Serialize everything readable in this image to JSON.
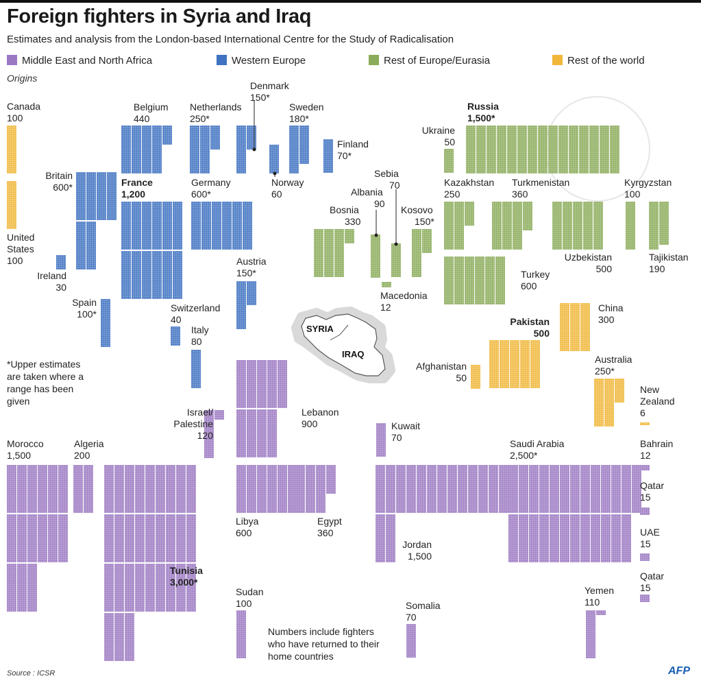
{
  "title": "Foreign fighters in Syria and Iraq",
  "subtitle": "Estimates and analysis from the London-based International Centre  for the Study of Radicalisation",
  "legend": [
    {
      "label": "Middle East and North Africa",
      "color": "#9b79c2"
    },
    {
      "label": "Western Europe",
      "color": "#3f72c1"
    },
    {
      "label": "Rest of Europe/Eurasia",
      "color": "#8aab5a"
    },
    {
      "label": "Rest of the world",
      "color": "#f0b73a"
    }
  ],
  "origins_label": "Origins",
  "footnote": "*Upper estimates are taken where a range has been given",
  "note": "Numbers include fighters who have returned to their home countries",
  "source": "Source : ICSR",
  "agency": "AFP",
  "map_labels": {
    "syria": "SYRIA",
    "iraq": "IRAQ"
  },
  "chart_data": {
    "type": "unit-chart",
    "unit": "fighters",
    "countries": [
      {
        "name": "Canada",
        "value_label": "100",
        "value": 100,
        "region": "Rest of the world"
      },
      {
        "name": "United States",
        "value_label": "100",
        "value": 100,
        "region": "Rest of the world"
      },
      {
        "name": "Belgium",
        "value_label": "440",
        "value": 440,
        "region": "Western Europe"
      },
      {
        "name": "Netherlands",
        "value_label": "250*",
        "value": 250,
        "region": "Western Europe"
      },
      {
        "name": "Denmark",
        "value_label": "150*",
        "value": 150,
        "region": "Western Europe"
      },
      {
        "name": "Sweden",
        "value_label": "180*",
        "value": 180,
        "region": "Western Europe"
      },
      {
        "name": "Finland",
        "value_label": "70*",
        "value": 70,
        "region": "Western Europe"
      },
      {
        "name": "Norway",
        "value_label": "60",
        "value": 60,
        "region": "Western Europe"
      },
      {
        "name": "Britain",
        "value_label": "600*",
        "value": 600,
        "region": "Western Europe"
      },
      {
        "name": "France",
        "value_label": "1,200",
        "value": 1200,
        "region": "Western Europe"
      },
      {
        "name": "Germany",
        "value_label": "600*",
        "value": 600,
        "region": "Western Europe"
      },
      {
        "name": "Ireland",
        "value_label": "30",
        "value": 30,
        "region": "Western Europe"
      },
      {
        "name": "Austria",
        "value_label": "150*",
        "value": 150,
        "region": "Western Europe"
      },
      {
        "name": "Spain",
        "value_label": "100*",
        "value": 100,
        "region": "Western Europe"
      },
      {
        "name": "Switzerland",
        "value_label": "40",
        "value": 40,
        "region": "Western Europe"
      },
      {
        "name": "Italy",
        "value_label": "80",
        "value": 80,
        "region": "Western Europe"
      },
      {
        "name": "Ukraine",
        "value_label": "50",
        "value": 50,
        "region": "Rest of Europe/Eurasia"
      },
      {
        "name": "Russia",
        "value_label": "1,500*",
        "value": 1500,
        "region": "Rest of Europe/Eurasia"
      },
      {
        "name": "Sebia",
        "value_label": "70",
        "value": 70,
        "region": "Rest of Europe/Eurasia"
      },
      {
        "name": "Albania",
        "value_label": "90",
        "value": 90,
        "region": "Rest of Europe/Eurasia"
      },
      {
        "name": "Bosnia",
        "value_label": "330",
        "value": 330,
        "region": "Rest of Europe/Eurasia"
      },
      {
        "name": "Kosovo",
        "value_label": "150*",
        "value": 150,
        "region": "Rest of Europe/Eurasia"
      },
      {
        "name": "Macedonia",
        "value_label": "12",
        "value": 12,
        "region": "Rest of Europe/Eurasia"
      },
      {
        "name": "Kazakhstan",
        "value_label": "250",
        "value": 250,
        "region": "Rest of Europe/Eurasia"
      },
      {
        "name": "Turkmenistan",
        "value_label": "360",
        "value": 360,
        "region": "Rest of Europe/Eurasia"
      },
      {
        "name": "Kyrgyzstan",
        "value_label": "100",
        "value": 100,
        "region": "Rest of Europe/Eurasia"
      },
      {
        "name": "Uzbekistan",
        "value_label": "500",
        "value": 500,
        "region": "Rest of Europe/Eurasia"
      },
      {
        "name": "Tajikistan",
        "value_label": "190",
        "value": 190,
        "region": "Rest of Europe/Eurasia"
      },
      {
        "name": "Turkey",
        "value_label": "600",
        "value": 600,
        "region": "Rest of Europe/Eurasia"
      },
      {
        "name": "China",
        "value_label": "300",
        "value": 300,
        "region": "Rest of the world"
      },
      {
        "name": "Pakistan",
        "value_label": "500",
        "value": 500,
        "region": "Rest of the world"
      },
      {
        "name": "Afghanistan",
        "value_label": "50",
        "value": 50,
        "region": "Rest of the world"
      },
      {
        "name": "Australia",
        "value_label": "250*",
        "value": 250,
        "region": "Rest of the world"
      },
      {
        "name": "New Zealand",
        "value_label": "6",
        "value": 6,
        "region": "Rest of the world"
      },
      {
        "name": "Israel/ Palestine",
        "value_label": "120",
        "value": 120,
        "region": "Middle East and North Africa"
      },
      {
        "name": "Lebanon",
        "value_label": "900",
        "value": 900,
        "region": "Middle East and North Africa"
      },
      {
        "name": "Kuwait",
        "value_label": "70",
        "value": 70,
        "region": "Middle East and North Africa"
      },
      {
        "name": "Morocco",
        "value_label": "1,500",
        "value": 1500,
        "region": "Middle East and North Africa"
      },
      {
        "name": "Algeria",
        "value_label": "200",
        "value": 200,
        "region": "Middle East and North Africa"
      },
      {
        "name": "Tunisia",
        "value_label": "3,000*",
        "value": 3000,
        "region": "Middle East and North Africa"
      },
      {
        "name": "Libya",
        "value_label": "600",
        "value": 600,
        "region": "Middle East and North Africa"
      },
      {
        "name": "Egypt",
        "value_label": "360",
        "value": 360,
        "region": "Middle East and North Africa"
      },
      {
        "name": "Jordan",
        "value_label": "1,500",
        "value": 1500,
        "region": "Middle East and North Africa"
      },
      {
        "name": "Saudi Arabia",
        "value_label": "2,500*",
        "value": 2500,
        "region": "Middle East and North Africa"
      },
      {
        "name": "Bahrain",
        "value_label": "12",
        "value": 12,
        "region": "Middle East and North Africa"
      },
      {
        "name": "Qatar",
        "value_label": "15",
        "value": 15,
        "region": "Middle East and North Africa"
      },
      {
        "name": "UAE",
        "value_label": "15",
        "value": 15,
        "region": "Middle East and North Africa"
      },
      {
        "name": "Qatar",
        "value_label": "15",
        "value": 15,
        "region": "Middle East and North Africa"
      },
      {
        "name": "Sudan",
        "value_label": "100",
        "value": 100,
        "region": "Middle East and North Africa"
      },
      {
        "name": "Somalia",
        "value_label": "70",
        "value": 70,
        "region": "Middle East and North Africa"
      },
      {
        "name": "Yemen",
        "value_label": "110",
        "value": 110,
        "region": "Middle East and North Africa"
      }
    ]
  }
}
